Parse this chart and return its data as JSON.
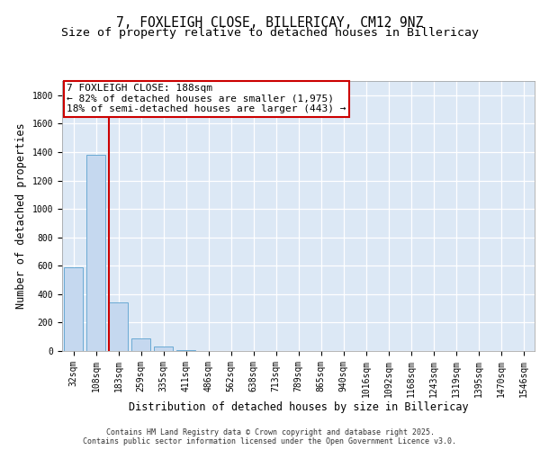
{
  "title1": "7, FOXLEIGH CLOSE, BILLERICAY, CM12 9NZ",
  "title2": "Size of property relative to detached houses in Billericay",
  "xlabel": "Distribution of detached houses by size in Billericay",
  "ylabel": "Number of detached properties",
  "categories": [
    "32sqm",
    "108sqm",
    "183sqm",
    "259sqm",
    "335sqm",
    "411sqm",
    "486sqm",
    "562sqm",
    "638sqm",
    "713sqm",
    "789sqm",
    "865sqm",
    "940sqm",
    "1016sqm",
    "1092sqm",
    "1168sqm",
    "1243sqm",
    "1319sqm",
    "1395sqm",
    "1470sqm",
    "1546sqm"
  ],
  "values": [
    590,
    1380,
    340,
    90,
    30,
    8,
    2,
    0,
    0,
    0,
    0,
    0,
    0,
    0,
    0,
    0,
    0,
    0,
    0,
    0,
    0
  ],
  "bar_color": "#c5d8ef",
  "bar_edge_color": "#6aaad4",
  "vline_color": "#cc0000",
  "vline_x_index": 2,
  "annotation_line1": "7 FOXLEIGH CLOSE: 188sqm",
  "annotation_line2": "← 82% of detached houses are smaller (1,975)",
  "annotation_line3": "18% of semi-detached houses are larger (443) →",
  "annotation_box_color": "#cc0000",
  "ylim": [
    0,
    1900
  ],
  "yticks": [
    0,
    200,
    400,
    600,
    800,
    1000,
    1200,
    1400,
    1600,
    1800
  ],
  "background_color": "#dce8f5",
  "grid_color": "#ffffff",
  "footer": "Contains HM Land Registry data © Crown copyright and database right 2025.\nContains public sector information licensed under the Open Government Licence v3.0.",
  "title_fontsize": 10.5,
  "subtitle_fontsize": 9.5,
  "tick_fontsize": 7,
  "ylabel_fontsize": 8.5,
  "xlabel_fontsize": 8.5,
  "annotation_fontsize": 8,
  "footer_fontsize": 6
}
